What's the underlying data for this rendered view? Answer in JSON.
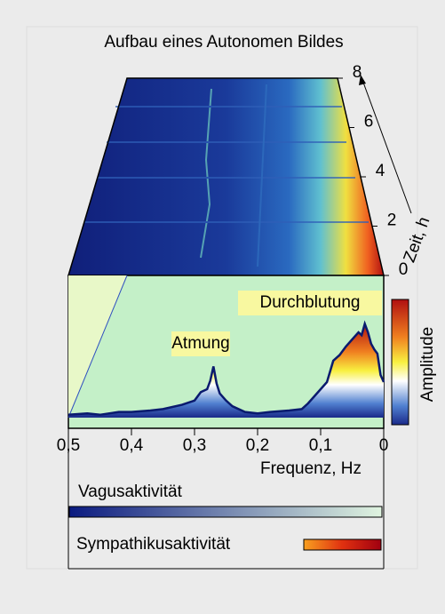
{
  "chart_data": {
    "type": "area",
    "title": "Aufbau eines Autonomen Bildes",
    "xlabel": "Frequenz, Hz",
    "zlabel": "Zeit, h",
    "xlim": [
      0.5,
      0
    ],
    "xticks": [
      {
        "value": 0.5,
        "label": "0,5"
      },
      {
        "value": 0.4,
        "label": "0,4"
      },
      {
        "value": 0.3,
        "label": "0,3"
      },
      {
        "value": 0.2,
        "label": "0,2"
      },
      {
        "value": 0.1,
        "label": "0,1"
      },
      0
    ],
    "zlim": [
      0,
      8
    ],
    "zticks": [
      0,
      2,
      4,
      6,
      8
    ],
    "ylim": [
      0,
      1
    ],
    "colorbar_label": "Amplitude",
    "annotations": [
      "Atmung",
      "Durchblutung"
    ],
    "color": "#0a1a6e",
    "x": [
      0.5,
      0.47,
      0.45,
      0.42,
      0.4,
      0.37,
      0.35,
      0.32,
      0.3,
      0.29,
      0.28,
      0.275,
      0.27,
      0.265,
      0.26,
      0.25,
      0.24,
      0.22,
      0.2,
      0.18,
      0.15,
      0.13,
      0.12,
      0.11,
      0.1,
      0.09,
      0.08,
      0.07,
      0.06,
      0.05,
      0.04,
      0.035,
      0.03,
      0.025,
      0.02,
      0.015,
      0.01,
      0.005,
      0
    ],
    "values": [
      0.02,
      0.03,
      0.02,
      0.04,
      0.04,
      0.05,
      0.06,
      0.09,
      0.12,
      0.18,
      0.2,
      0.26,
      0.36,
      0.24,
      0.17,
      0.12,
      0.08,
      0.04,
      0.03,
      0.04,
      0.05,
      0.06,
      0.1,
      0.15,
      0.2,
      0.25,
      0.4,
      0.44,
      0.5,
      0.55,
      0.6,
      0.58,
      0.66,
      0.6,
      0.52,
      0.48,
      0.45,
      0.3,
      0.25
    ],
    "activity_bars": [
      {
        "name": "Vagusaktivität",
        "color": "#1020a0"
      },
      {
        "name": "Sympathikusaktivität",
        "color": "#ee1111"
      }
    ]
  }
}
